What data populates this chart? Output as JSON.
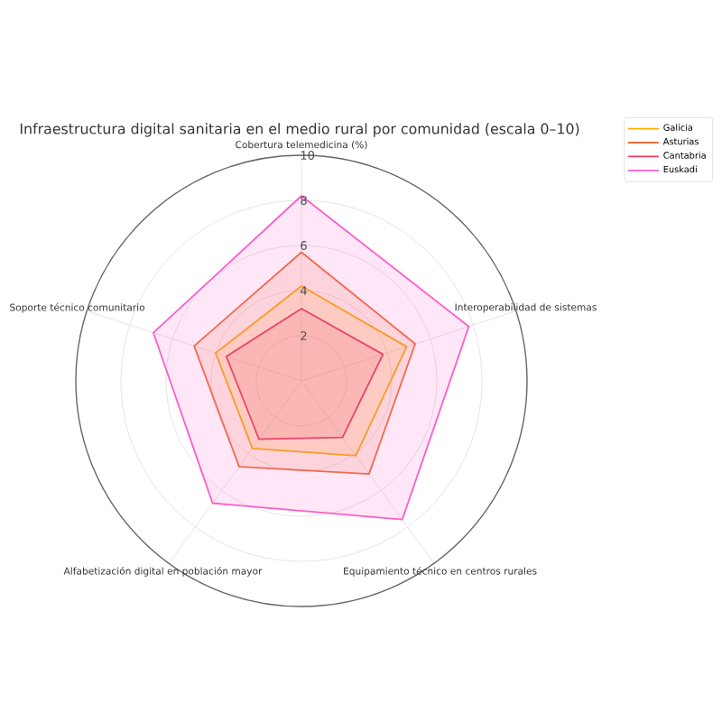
{
  "chart_data": {
    "type": "radar",
    "title": "Infraestructura digital sanitaria en el medio rural por comunidad (escala 0–10)",
    "categories": [
      "Cobertura telemedicina (%)",
      "Interoperabilidad de sistemas",
      "Equipamiento técnico en centros rurales",
      "Alfabetización digital en población mayor",
      "Soporte técnico comunitario"
    ],
    "ylim": [
      0,
      10
    ],
    "yticks": [
      2,
      4,
      6,
      8,
      10
    ],
    "grid": true,
    "legend": "top right",
    "series": [
      {
        "name": "Galicia",
        "color": "#ffb000",
        "values": [
          4.2,
          4.9,
          4.1,
          3.7,
          4.0
        ]
      },
      {
        "name": "Asturias",
        "color": "#f26b3a",
        "values": [
          5.7,
          5.3,
          5.1,
          4.7,
          5.0
        ]
      },
      {
        "name": "Cantabria",
        "color": "#e8405a",
        "values": [
          3.2,
          3.8,
          3.1,
          3.2,
          3.5
        ]
      },
      {
        "name": "Euskadi",
        "color": "#ff5cc8",
        "values": [
          8.2,
          7.8,
          7.6,
          6.7,
          6.9
        ]
      }
    ]
  }
}
